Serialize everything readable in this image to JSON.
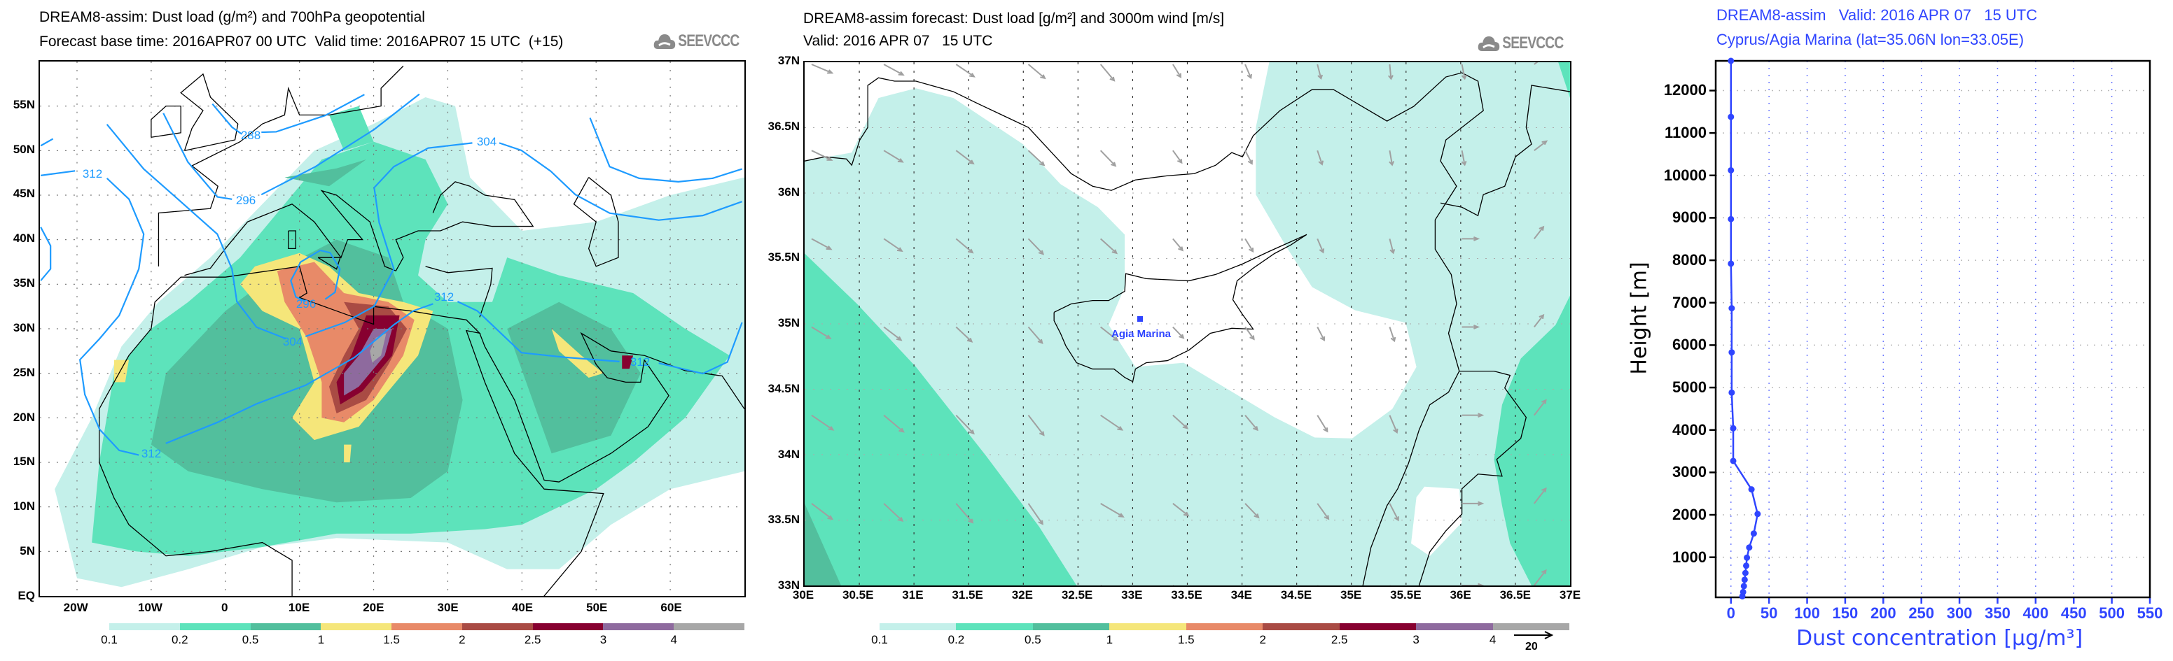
{
  "colors": {
    "bins": [
      "#c4f0ea",
      "#5de3bb",
      "#52bf9d",
      "#f5e67a",
      "#e88a68",
      "#a94b44",
      "#870030",
      "#8e6a9e",
      "#a7a7a7"
    ],
    "contour": "#1e9bff",
    "profile": "#2f45ff",
    "wind_arrow": "#a0a0a0"
  },
  "left_map": {
    "title": "DREAM8-assim: Dust load (g/m²) and 700hPa geopotential",
    "subtitle": "Forecast base time: 2016APR07 00 UTC  Valid time: 2016APR07 15 UTC  (+15)",
    "logo": "SEEVCCC",
    "lat_labels": [
      "55N",
      "50N",
      "45N",
      "40N",
      "35N",
      "30N",
      "25N",
      "20N",
      "15N",
      "10N",
      "5N",
      "EQ"
    ],
    "lon_labels": [
      "20W",
      "10W",
      "0",
      "10E",
      "20E",
      "30E",
      "40E",
      "50E",
      "60E"
    ],
    "contour_labels": [
      "288",
      "304",
      "312",
      "296",
      "296",
      "312",
      "304",
      "312",
      "312"
    ],
    "colorbar": [
      "0.1",
      "0.2",
      "0.5",
      "1",
      "1.5",
      "2",
      "2.5",
      "3",
      "4"
    ]
  },
  "middle_map": {
    "title": "DREAM8-assim forecast: Dust load [g/m²] and 3000m wind [m/s]",
    "subtitle": "Valid: 2016 APR 07   15 UTC",
    "logo": "SEEVCCC",
    "lat_labels": [
      "37N",
      "36.5N",
      "36N",
      "35.5N",
      "35N",
      "34.5N",
      "34N",
      "33.5N",
      "33N"
    ],
    "lon_labels": [
      "30E",
      "30.5E",
      "31E",
      "31.5E",
      "32E",
      "32.5E",
      "33E",
      "33.5E",
      "34E",
      "34.5E",
      "35E",
      "35.5E",
      "36E",
      "36.5E",
      "37E"
    ],
    "station": "Agia Marina",
    "colorbar": [
      "0.1",
      "0.2",
      "0.5",
      "1",
      "1.5",
      "2",
      "2.5",
      "3",
      "4"
    ],
    "wind_ref": "20"
  },
  "chart_data": {
    "type": "line",
    "title": "DREAM8-assim   Valid: 2016 APR 07   15 UTC",
    "subtitle": "Cyprus/Agia Marina (lat=35.06N lon=33.05E)",
    "xlabel": "Dust concentration [µg/m³]",
    "ylabel": "Height [m]",
    "xlim": [
      -20,
      550
    ],
    "ylim": [
      55,
      12700
    ],
    "xticks": [
      "0",
      "50",
      "100",
      "150",
      "200",
      "250",
      "300",
      "350",
      "400",
      "450",
      "500",
      "550"
    ],
    "yticks": [
      "1000",
      "2000",
      "3000",
      "4000",
      "5000",
      "6000",
      "7000",
      "8000",
      "9000",
      "10000",
      "11000",
      "12000"
    ],
    "grid": true,
    "series": [
      {
        "name": "Dust concentration",
        "points": [
          [
            0,
            12700
          ],
          [
            0,
            11380
          ],
          [
            0,
            10120
          ],
          [
            0,
            8970
          ],
          [
            0,
            7920
          ],
          [
            1,
            6870
          ],
          [
            1,
            5830
          ],
          [
            1,
            4880
          ],
          [
            3,
            4040
          ],
          [
            3,
            3270
          ],
          [
            27,
            2600
          ],
          [
            35,
            2020
          ],
          [
            30,
            1560
          ],
          [
            24,
            1230
          ],
          [
            21,
            990
          ],
          [
            20,
            800
          ],
          [
            19,
            630
          ],
          [
            18,
            470
          ],
          [
            17,
            320
          ],
          [
            16,
            180
          ],
          [
            15,
            80
          ]
        ]
      }
    ]
  }
}
